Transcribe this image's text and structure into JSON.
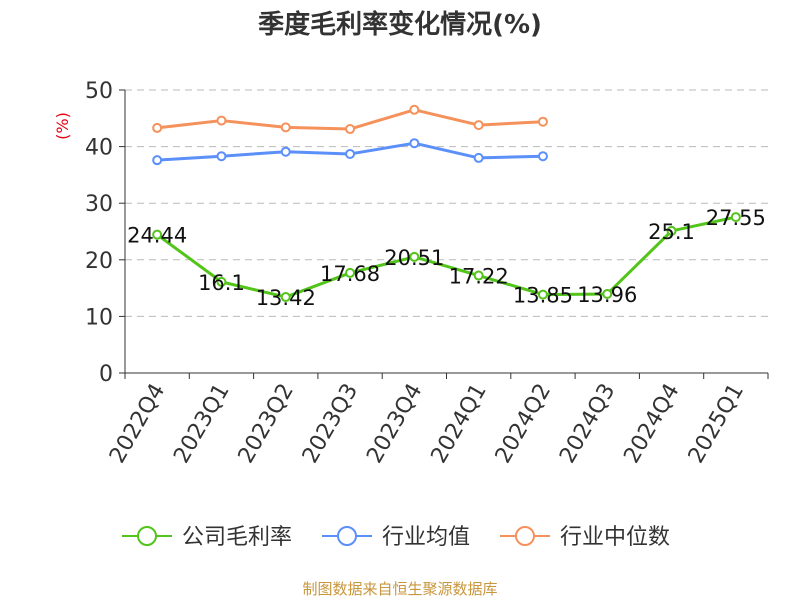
{
  "chart_data": {
    "type": "line",
    "title": "季度毛利率变化情况(%)",
    "ylabel": "(%)",
    "ylim": [
      0,
      50
    ],
    "yticks": [
      0,
      10,
      20,
      30,
      40,
      50
    ],
    "grid": true,
    "legend_position": "bottom",
    "categories": [
      "2022Q4",
      "2023Q1",
      "2023Q2",
      "2023Q3",
      "2023Q4",
      "2024Q1",
      "2024Q2",
      "2024Q3",
      "2024Q4",
      "2025Q1"
    ],
    "series": [
      {
        "name": "公司毛利率",
        "color": "#52c41a",
        "values": [
          24.44,
          16.1,
          13.42,
          17.68,
          20.51,
          17.22,
          13.85,
          13.96,
          25.1,
          27.55
        ],
        "labels": [
          "24.44",
          "16.1",
          "13.42",
          "17.68",
          "20.51",
          "17.22",
          "13.85",
          "13.96",
          "25.1",
          "27.55"
        ]
      },
      {
        "name": "行业均值",
        "color": "#5b8ff9",
        "values": [
          37.6,
          38.3,
          39.1,
          38.7,
          40.6,
          38.0,
          38.3,
          null,
          null,
          null
        ]
      },
      {
        "name": "行业中位数",
        "color": "#f5915a",
        "values": [
          43.3,
          44.6,
          43.4,
          43.1,
          46.5,
          43.8,
          44.4,
          null,
          null,
          null
        ]
      }
    ],
    "source": "制图数据来自恒生聚源数据库"
  }
}
